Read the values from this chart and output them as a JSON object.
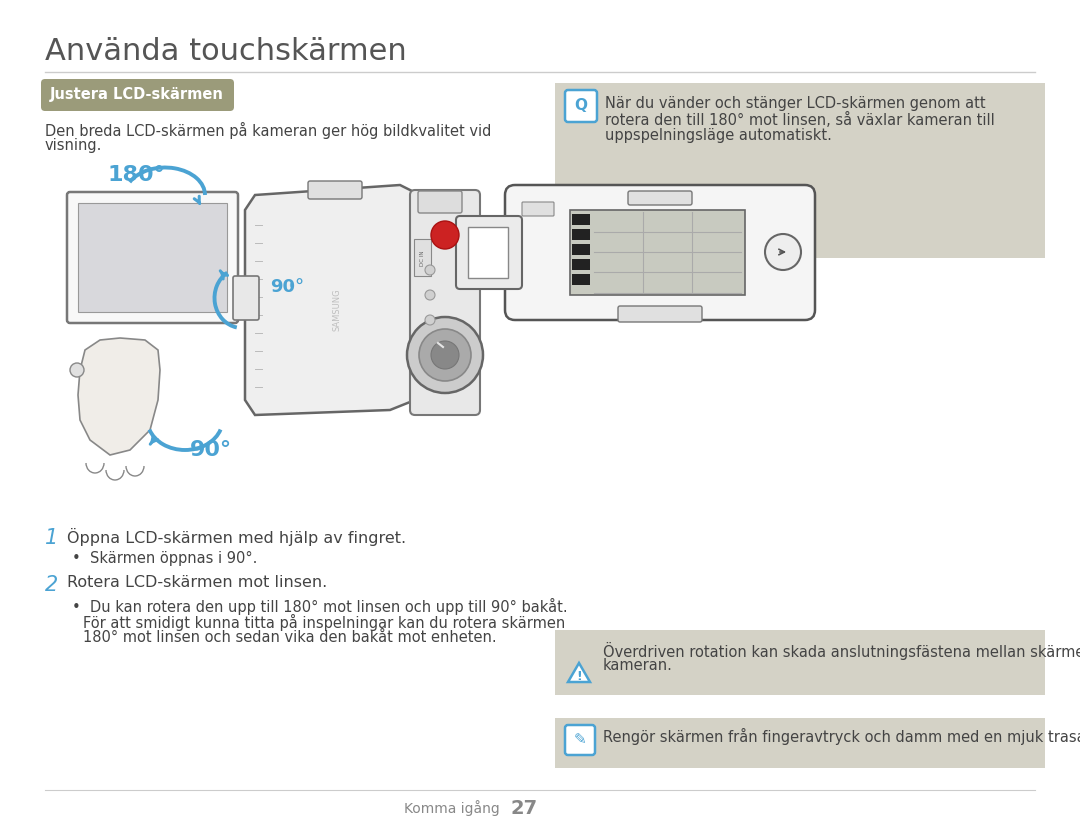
{
  "page_title": "Använda touchskärmen",
  "section_header": "Justera LCD-skärmen",
  "section_header_bg": "#9B9B7A",
  "section_header_text_color": "#FFFFFF",
  "body_text_color": "#555555",
  "background_color": "#FFFFFF",
  "info_box_bg": "#D4D2C6",
  "divider_color": "#CCCCCC",
  "body_text_line1": "Den breda LCD-skärmen på kameran ger hög bildkvalitet vid",
  "body_text_line2": "visning.",
  "right_info_line1": "När du vänder och stänger LCD-skärmen genom att",
  "right_info_line2": "rotera den till 180° mot linsen, så växlar kameran till",
  "right_info_line3": "uppspelningsläge automatiskt.",
  "warning_line1": "Överdriven rotation kan skada anslutningsfästena mellan skärmen och",
  "warning_line2": "kameran.",
  "note_text": "Rengör skärmen från fingeravtryck och damm med en mjuk trasa.",
  "step1_num": "1",
  "step1_title": "Öppna LCD-skärmen med hjälp av fingret.",
  "step1_bullet": "Skärmen öppnas i 90°.",
  "step2_num": "2",
  "step2_title": "Rotera LCD-skärmen mot linsen.",
  "step2_b1": "Du kan rotera den upp till 180° mot linsen och upp till 90° bakåt.",
  "step2_b2": "För att smidigt kunna titta på inspelningar kan du rotera skärmen",
  "step2_b3": "180° mot linsen och sedan vika den bakåt mot enheten.",
  "footer_text": "Komma igång",
  "footer_page": "27",
  "blue_color": "#4BA3D3",
  "icon_color": "#4BA3D3",
  "step_num_color": "#4BA3D3",
  "text_dark": "#444444",
  "text_medium": "#666666"
}
